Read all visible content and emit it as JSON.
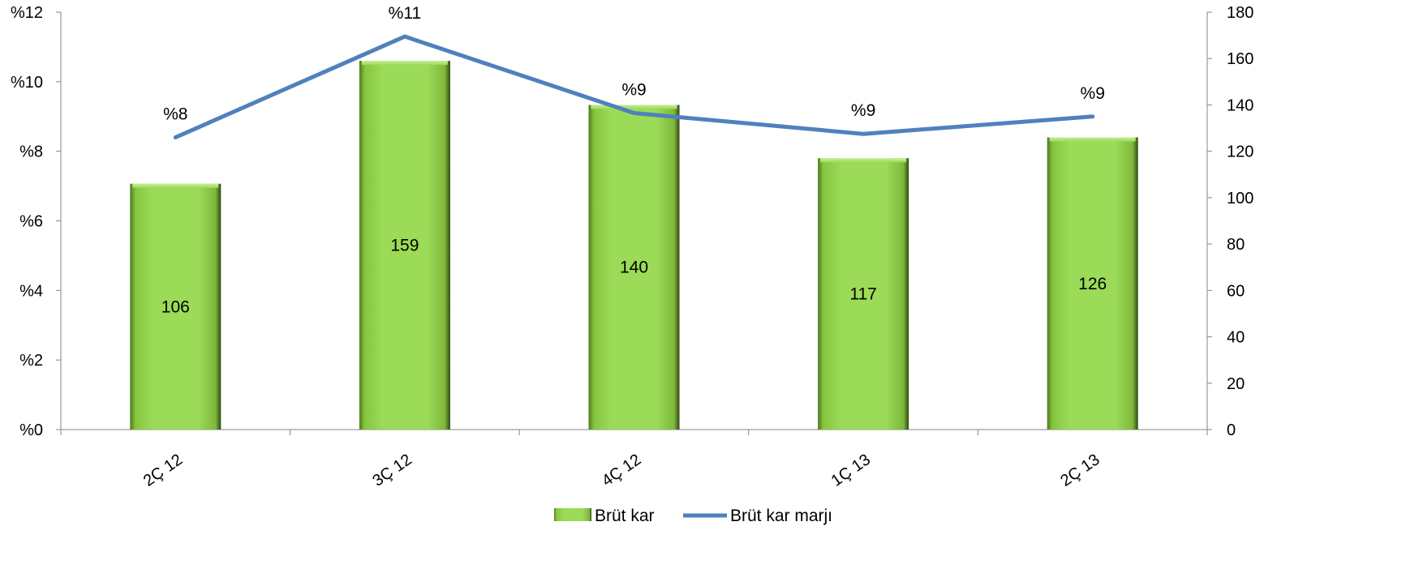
{
  "chart_data": {
    "type": "bar",
    "categories": [
      "2Ç 12",
      "3Ç 12",
      "4Ç 12",
      "1Ç 13",
      "2Ç 13"
    ],
    "series": [
      {
        "name": "Brüt kar",
        "kind": "bar",
        "axis": "right",
        "values": [
          106,
          159,
          140,
          117,
          126
        ],
        "labels": [
          "106",
          "159",
          "140",
          "117",
          "126"
        ],
        "color": "#92D050"
      },
      {
        "name": "Brüt kar marjı",
        "kind": "line",
        "axis": "left",
        "values": [
          8.4,
          11.3,
          9.1,
          8.5,
          9.0
        ],
        "labels": [
          "%8",
          "%11",
          "%9",
          "%9",
          "%9"
        ],
        "color": "#4F81BD"
      }
    ],
    "y_left": {
      "ylim": [
        0,
        12
      ],
      "ticks": [
        0,
        2,
        4,
        6,
        8,
        10,
        12
      ],
      "tick_labels": [
        "%0",
        "%2",
        "%4",
        "%6",
        "%8",
        "%10",
        "%12"
      ]
    },
    "y_right": {
      "ylim": [
        0,
        180
      ],
      "ticks": [
        0,
        20,
        40,
        60,
        80,
        100,
        120,
        140,
        160,
        180
      ],
      "tick_labels": [
        "0",
        "20",
        "40",
        "60",
        "80",
        "100",
        "120",
        "140",
        "160",
        "180"
      ]
    },
    "grid": false,
    "legend": {
      "position": "bottom",
      "entries": [
        "Brüt kar",
        "Brüt kar marjı"
      ]
    }
  }
}
